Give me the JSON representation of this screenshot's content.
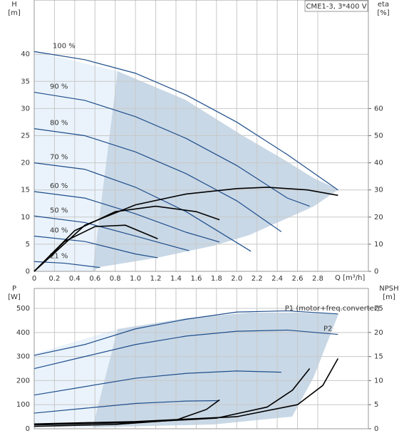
{
  "chart_data": [
    {
      "type": "line",
      "title": "CME1-3, 3*400 V",
      "y_label": "H",
      "y_unit": "[m]",
      "y2_label": "eta",
      "y2_unit": "[%]",
      "x_label": "Q [m³/h]",
      "xlim": [
        0,
        3.3
      ],
      "ylim": [
        0,
        50
      ],
      "y2lim": [
        0,
        100
      ],
      "xticks": [
        0,
        0.2,
        0.4,
        0.6,
        0.8,
        {
          "value": 1,
          "label": "1.0"
        },
        1.2,
        1.4,
        1.6,
        1.8,
        {
          "value": 2,
          "label": "2.0"
        },
        2.2,
        2.4,
        2.6,
        2.8
      ],
      "yticks": [
        0,
        5,
        10,
        15,
        20,
        25,
        30,
        35,
        40
      ],
      "y2ticks": [
        0,
        10,
        20,
        30,
        40,
        50,
        60
      ],
      "grid": true,
      "show_xtick_labels": true,
      "series_label_at": "start",
      "series": [
        {
          "name": "100 %",
          "color": "#1f4e8c",
          "x": [
            0,
            0.5,
            1.0,
            1.5,
            2.0,
            2.5,
            3.0
          ],
          "values": [
            40.5,
            39,
            36.5,
            32.5,
            27.5,
            21.5,
            15
          ]
        },
        {
          "name": "90 %",
          "color": "#1f4e8c",
          "x": [
            0,
            0.5,
            1.0,
            1.5,
            2.0,
            2.5,
            2.72
          ],
          "values": [
            33,
            31.5,
            28.5,
            24.5,
            19.5,
            13.5,
            12
          ]
        },
        {
          "name": "80 %",
          "color": "#1f4e8c",
          "x": [
            0,
            0.5,
            1.0,
            1.5,
            2.0,
            2.44
          ],
          "values": [
            26.3,
            25,
            22,
            18,
            13,
            7.3
          ]
        },
        {
          "name": "70 %",
          "color": "#1f4e8c",
          "x": [
            0,
            0.5,
            1.0,
            1.5,
            2.14
          ],
          "values": [
            20,
            18.8,
            15.5,
            11,
            3.7
          ]
        },
        {
          "name": "60 %",
          "color": "#1f4e8c",
          "x": [
            0,
            0.5,
            1.0,
            1.5,
            1.83
          ],
          "values": [
            14.7,
            13.5,
            10.6,
            7.2,
            5.4
          ]
        },
        {
          "name": "50 %",
          "color": "#1f4e8c",
          "x": [
            0,
            0.5,
            1.0,
            1.53
          ],
          "values": [
            10.2,
            9,
            6.5,
            3.8
          ]
        },
        {
          "name": "40 %",
          "color": "#1f4e8c",
          "x": [
            0,
            0.5,
            1.0,
            1.22
          ],
          "values": [
            6.5,
            5.5,
            3.2,
            2.5
          ]
        },
        {
          "name": "21 %",
          "color": "#1f4e8c",
          "x": [
            0,
            0.3,
            0.65
          ],
          "values": [
            1.8,
            1.5,
            0.7
          ]
        },
        {
          "color": "#000000",
          "axis": "y2",
          "x": [
            0,
            0.5,
            1.0,
            1.5,
            2.0,
            2.3,
            2.7,
            3.0
          ],
          "values": [
            0,
            17,
            24.5,
            28.5,
            30.5,
            31,
            30,
            28
          ]
        },
        {
          "color": "#000000",
          "axis": "y2",
          "x": [
            0,
            0.4,
            0.8,
            1.2,
            1.6,
            1.83
          ],
          "values": [
            0,
            15,
            22,
            24,
            22,
            19
          ]
        },
        {
          "color": "#000000",
          "axis": "y2",
          "x": [
            0,
            0.3,
            0.6,
            0.9,
            1.22
          ],
          "values": [
            0,
            11,
            16.5,
            17,
            12
          ]
        }
      ]
    },
    {
      "type": "line",
      "y_label": "P",
      "y_unit": "[W]",
      "y2_label": "NPSH",
      "y2_unit": "[m]",
      "xlim": [
        0,
        3.3
      ],
      "ylim": [
        0,
        583
      ],
      "y2lim": [
        0,
        29.15
      ],
      "xticks": [
        0,
        0.2,
        0.4,
        0.6,
        0.8,
        1,
        1.2,
        1.4,
        1.6,
        1.8,
        2,
        2.2,
        2.4,
        2.6,
        2.8
      ],
      "yticks": [
        0,
        100,
        200,
        300,
        400,
        500
      ],
      "y2ticks": [
        0,
        5,
        10,
        15,
        20,
        25
      ],
      "grid": true,
      "show_xtick_labels": false,
      "series_label_at": "end",
      "series": [
        {
          "name": "P1 (motor+freq.converter)",
          "color": "#1f4e8c",
          "x": [
            0,
            0.5,
            1.0,
            1.5,
            2.0,
            2.5,
            3.0
          ],
          "values": [
            305,
            350,
            415,
            455,
            485,
            490,
            477
          ]
        },
        {
          "name": "P2",
          "color": "#1f4e8c",
          "x": [
            0,
            0.5,
            1.0,
            1.5,
            2.0,
            2.5,
            3.0
          ],
          "values": [
            250,
            300,
            350,
            385,
            405,
            410,
            392
          ]
        },
        {
          "color": "#1f4e8c",
          "x": [
            0,
            0.5,
            1.0,
            1.5,
            2.0,
            2.44
          ],
          "values": [
            140,
            175,
            210,
            230,
            240,
            235
          ]
        },
        {
          "color": "#1f4e8c",
          "x": [
            0,
            0.5,
            1.0,
            1.5,
            1.83
          ],
          "values": [
            65,
            85,
            105,
            115,
            117
          ]
        },
        {
          "color": "#000000",
          "axis": "y2",
          "x": [
            0,
            1.0,
            2.0,
            2.6,
            2.85,
            3.0
          ],
          "values": [
            1,
            1.5,
            2.5,
            5,
            9,
            14.6
          ]
        },
        {
          "color": "#000000",
          "axis": "y2",
          "x": [
            0,
            1.0,
            1.8,
            2.3,
            2.55,
            2.72
          ],
          "values": [
            0.8,
            1.3,
            2.2,
            4.5,
            8,
            12.5
          ]
        },
        {
          "color": "#000000",
          "axis": "y2",
          "x": [
            0,
            0.8,
            1.4,
            1.7,
            1.83
          ],
          "values": [
            0.5,
            0.9,
            1.8,
            4,
            6
          ]
        }
      ]
    }
  ]
}
